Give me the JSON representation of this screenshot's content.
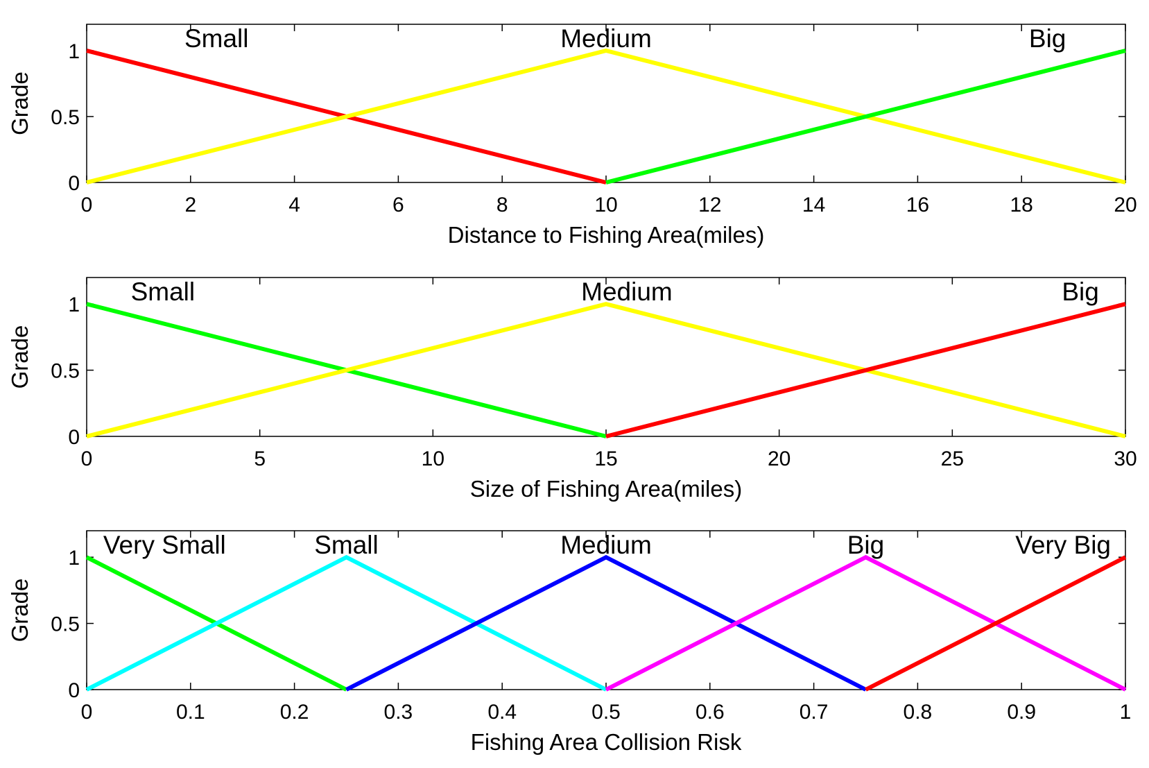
{
  "figure": {
    "background": "#ffffff"
  },
  "chart_data": [
    {
      "type": "line",
      "xlabel": "Distance to Fishing Area(miles)",
      "ylabel": "Grade",
      "xlim": [
        0,
        20
      ],
      "ylim": [
        0,
        1.2
      ],
      "xticks": [
        0,
        2,
        4,
        6,
        8,
        10,
        12,
        14,
        16,
        18,
        20
      ],
      "xtick_labels": [
        "0",
        "2",
        "4",
        "6",
        "8",
        "10",
        "12",
        "14",
        "16",
        "18",
        "20"
      ],
      "yticks": [
        0,
        0.5,
        1
      ],
      "ytick_labels": [
        "0",
        "0.5",
        "1"
      ],
      "grid": false,
      "series": [
        {
          "name": "Small",
          "color": "#ff0000",
          "x": [
            0,
            10
          ],
          "y": [
            1,
            0
          ],
          "label_x": 2.5
        },
        {
          "name": "Medium",
          "color": "#ffff00",
          "x": [
            0,
            10,
            20
          ],
          "y": [
            0,
            1,
            0
          ],
          "label_x": 10
        },
        {
          "name": "Big",
          "color": "#00ff00",
          "x": [
            10,
            20
          ],
          "y": [
            0,
            1
          ],
          "label_x": 18.5
        }
      ]
    },
    {
      "type": "line",
      "xlabel": "Size of Fishing Area(miles)",
      "ylabel": "Grade",
      "xlim": [
        0,
        30
      ],
      "ylim": [
        0,
        1.2
      ],
      "xticks": [
        0,
        5,
        10,
        15,
        20,
        25,
        30
      ],
      "xtick_labels": [
        "0",
        "5",
        "10",
        "15",
        "20",
        "25",
        "30"
      ],
      "yticks": [
        0,
        0.5,
        1
      ],
      "ytick_labels": [
        "0",
        "0.5",
        "1"
      ],
      "grid": false,
      "series": [
        {
          "name": "Small",
          "color": "#00ff00",
          "x": [
            0,
            15
          ],
          "y": [
            1,
            0
          ],
          "label_x": 2.2
        },
        {
          "name": "Medium",
          "color": "#ffff00",
          "x": [
            0,
            15,
            30
          ],
          "y": [
            0,
            1,
            0
          ],
          "label_x": 15.6
        },
        {
          "name": "Big",
          "color": "#ff0000",
          "x": [
            15,
            30
          ],
          "y": [
            0,
            1
          ],
          "label_x": 28.7
        }
      ]
    },
    {
      "type": "line",
      "xlabel": "Fishing Area Collision Risk",
      "ylabel": "Grade",
      "xlim": [
        0,
        1
      ],
      "ylim": [
        0,
        1.2
      ],
      "xticks": [
        0,
        0.1,
        0.2,
        0.3,
        0.4,
        0.5,
        0.6,
        0.7,
        0.8,
        0.9,
        1
      ],
      "xtick_labels": [
        "0",
        "0.1",
        "0.2",
        "0.3",
        "0.4",
        "0.5",
        "0.6",
        "0.7",
        "0.8",
        "0.9",
        "1"
      ],
      "yticks": [
        0,
        0.5,
        1
      ],
      "ytick_labels": [
        "0",
        "0.5",
        "1"
      ],
      "grid": false,
      "series": [
        {
          "name": "Very Small",
          "color": "#00ff00",
          "x": [
            0,
            0.25
          ],
          "y": [
            1,
            0
          ],
          "label_x": 0.075
        },
        {
          "name": "Small",
          "color": "#00ffff",
          "x": [
            0,
            0.25,
            0.5
          ],
          "y": [
            0,
            1,
            0
          ],
          "label_x": 0.25
        },
        {
          "name": "Medium",
          "color": "#0000ff",
          "x": [
            0.25,
            0.5,
            0.75
          ],
          "y": [
            0,
            1,
            0
          ],
          "label_x": 0.5
        },
        {
          "name": "Big",
          "color": "#ff00ff",
          "x": [
            0.5,
            0.75,
            1
          ],
          "y": [
            0,
            1,
            0
          ],
          "label_x": 0.75
        },
        {
          "name": "Very Big",
          "color": "#ff0000",
          "x": [
            0.75,
            1
          ],
          "y": [
            0,
            1
          ],
          "label_x": 0.94
        }
      ]
    }
  ]
}
